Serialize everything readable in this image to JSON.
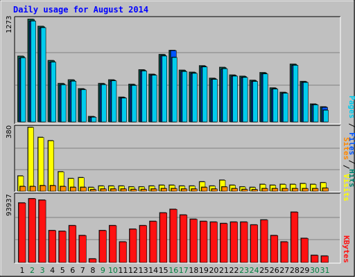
{
  "title": "Daily usage for August 2014",
  "colors": {
    "background": "#c0c0c0",
    "title": "#0000ff",
    "hits": "#00806e",
    "files": "#0055ff",
    "pages": "#00ccee",
    "visits": "#ffff00",
    "sites": "#ff8800",
    "kbytes": "#ff1111",
    "weekend_day": "#008040",
    "weekday_day": "#000000"
  },
  "chart_data": [
    {
      "type": "bar",
      "panel": "top",
      "ylabel_max": "1273",
      "ylim": [
        0,
        1273
      ],
      "legend": {
        "pages": "Pages",
        "files": "Files",
        "hits": "Hits",
        "sep": " / "
      },
      "categories": [
        "1",
        "2",
        "3",
        "4",
        "5",
        "6",
        "7",
        "8",
        "9",
        "10",
        "11",
        "12",
        "13",
        "14",
        "15",
        "16",
        "17",
        "18",
        "19",
        "20",
        "21",
        "22",
        "23",
        "24",
        "25",
        "26",
        "27",
        "28",
        "29",
        "30",
        "31"
      ],
      "series": [
        {
          "name": "Hits",
          "values": [
            814,
            1273,
            1185,
            760,
            475,
            520,
            410,
            65,
            475,
            520,
            305,
            465,
            645,
            590,
            835,
            885,
            640,
            615,
            695,
            540,
            675,
            580,
            565,
            515,
            610,
            420,
            365,
            715,
            500,
            220,
            185
          ]
        },
        {
          "name": "Files",
          "values": [
            790,
            1250,
            1165,
            740,
            458,
            500,
            395,
            55,
            460,
            505,
            295,
            450,
            630,
            578,
            820,
            885,
            625,
            600,
            680,
            525,
            655,
            565,
            550,
            500,
            595,
            405,
            352,
            700,
            490,
            210,
            180
          ]
        },
        {
          "name": "Pages",
          "values": [
            796,
            1252,
            1170,
            742,
            460,
            505,
            400,
            58,
            462,
            510,
            296,
            452,
            632,
            580,
            818,
            800,
            625,
            603,
            683,
            528,
            660,
            568,
            552,
            502,
            596,
            408,
            356,
            702,
            490,
            212,
            145
          ]
        }
      ]
    },
    {
      "type": "bar",
      "panel": "middle",
      "ylabel_max": "380",
      "ylim": [
        0,
        380
      ],
      "legend": {
        "sites": "Sites",
        "visits": "Visits",
        "sep": " / "
      },
      "categories": [
        "1",
        "2",
        "3",
        "4",
        "5",
        "6",
        "7",
        "8",
        "9",
        "10",
        "11",
        "12",
        "13",
        "14",
        "15",
        "16",
        "17",
        "18",
        "19",
        "20",
        "21",
        "22",
        "23",
        "24",
        "25",
        "26",
        "27",
        "28",
        "29",
        "30",
        "31"
      ],
      "series": [
        {
          "name": "Visits",
          "values": [
            90,
            380,
            320,
            300,
            115,
            75,
            80,
            22,
            30,
            30,
            30,
            25,
            25,
            30,
            35,
            35,
            30,
            30,
            55,
            30,
            65,
            35,
            25,
            22,
            40,
            35,
            40,
            40,
            45,
            40,
            50
          ]
        },
        {
          "name": "Sites",
          "values": [
            55,
            55,
            65,
            65,
            55,
            45,
            45,
            18,
            25,
            25,
            25,
            20,
            20,
            25,
            30,
            30,
            25,
            25,
            45,
            25,
            50,
            30,
            20,
            18,
            30,
            30,
            30,
            30,
            30,
            30,
            35
          ]
        }
      ]
    },
    {
      "type": "bar",
      "panel": "bottom",
      "ylabel_max": "93937",
      "ylim": [
        0,
        93937
      ],
      "legend": {
        "kbytes": "KBytes"
      },
      "categories": [
        "1",
        "2",
        "3",
        "4",
        "5",
        "6",
        "7",
        "8",
        "9",
        "10",
        "11",
        "12",
        "13",
        "14",
        "15",
        "16",
        "17",
        "18",
        "19",
        "20",
        "21",
        "22",
        "23",
        "24",
        "25",
        "26",
        "27",
        "28",
        "29",
        "30",
        "31"
      ],
      "series": [
        {
          "name": "KBytes",
          "values": [
            84000,
            90000,
            88000,
            45000,
            44000,
            52000,
            38000,
            5000,
            45000,
            52000,
            29000,
            47000,
            52000,
            58000,
            70000,
            75000,
            67000,
            61000,
            58000,
            57000,
            55000,
            57000,
            57000,
            53000,
            60000,
            38000,
            29000,
            71000,
            34000,
            10000,
            9000
          ]
        }
      ]
    }
  ],
  "days": [
    "1",
    "2",
    "3",
    "4",
    "5",
    "6",
    "7",
    "8",
    "9",
    "10",
    "11",
    "12",
    "13",
    "14",
    "15",
    "16",
    "17",
    "18",
    "19",
    "20",
    "21",
    "22",
    "23",
    "24",
    "25",
    "26",
    "27",
    "28",
    "29",
    "30",
    "31"
  ],
  "weekend_days": [
    "2",
    "3",
    "9",
    "10",
    "16",
    "17",
    "23",
    "24",
    "30",
    "31"
  ]
}
